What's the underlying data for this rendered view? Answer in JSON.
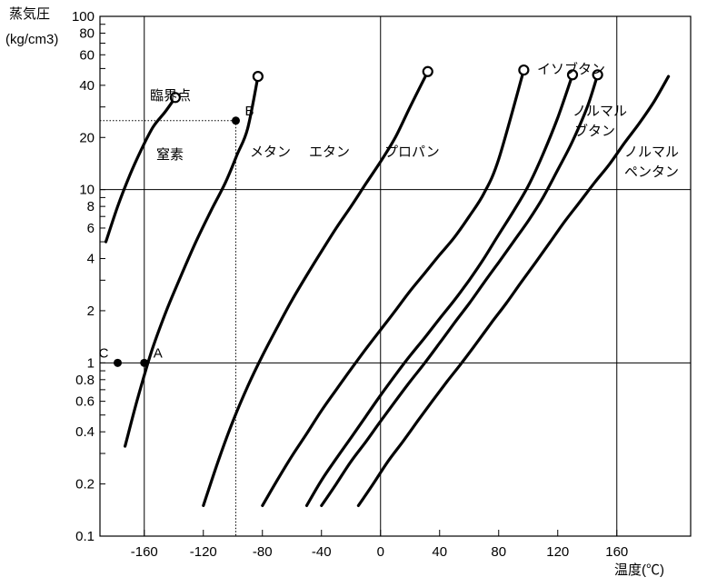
{
  "chart_data": {
    "type": "line",
    "title": "",
    "ylabel": "蒸気圧",
    "ylabel_unit": "(kg/cm3)",
    "xlabel": "温度(℃)",
    "y_scale": "log",
    "ylim": [
      0.1,
      100
    ],
    "xlim": [
      -190,
      210
    ],
    "grid": "sparse",
    "x_ticks": [
      -160,
      -120,
      -80,
      -40,
      0,
      40,
      80,
      120,
      160
    ],
    "x_tick_labels": [
      "-160",
      "-120",
      "-80",
      "-40",
      "0",
      "40",
      "80",
      "120",
      "160"
    ],
    "x_gridlines": [
      -160,
      0,
      160
    ],
    "y_ticks": [
      0.1,
      0.2,
      0.4,
      0.6,
      0.8,
      1,
      2,
      4,
      6,
      8,
      10,
      20,
      40,
      60,
      80,
      100
    ],
    "y_tick_labels": [
      "0.1",
      "0.2",
      "0.4",
      "0.6",
      "0.8",
      "1",
      "2",
      "4",
      "6",
      "8",
      "10",
      "20",
      "40",
      "60",
      "80",
      "100"
    ],
    "y_gridlines": [
      1,
      10
    ],
    "series": [
      {
        "name": "窒素",
        "x": [
          -186,
          -178,
          -170,
          -162,
          -154,
          -146,
          -139
        ],
        "y": [
          5.0,
          8.0,
          12.0,
          17.0,
          23.0,
          28.0,
          34.0
        ],
        "critical_point": [
          -139,
          34
        ]
      },
      {
        "name": "メタン",
        "x": [
          -173,
          -165,
          -155,
          -145,
          -135,
          -125,
          -115,
          -105,
          -97,
          -90,
          -83
        ],
        "y": [
          0.33,
          0.6,
          1.17,
          2.0,
          3.2,
          5.0,
          7.5,
          11.0,
          16.0,
          22.5,
          45.0
        ],
        "critical_point": [
          -83,
          45
        ]
      },
      {
        "name": "エタン",
        "x": [
          -120,
          -110,
          -100,
          -90,
          -80,
          -70,
          -60,
          -50,
          -40,
          -30,
          -20,
          -10,
          0,
          10,
          20,
          32
        ],
        "y": [
          0.15,
          0.27,
          0.46,
          0.73,
          1.1,
          1.6,
          2.3,
          3.2,
          4.4,
          6.0,
          8.0,
          10.8,
          14.5,
          20.0,
          30.0,
          48.0
        ],
        "critical_point": [
          32,
          48
        ]
      },
      {
        "name": "プロパン",
        "x": [
          -80,
          -70,
          -60,
          -50,
          -40,
          -30,
          -20,
          -10,
          0,
          10,
          20,
          30,
          40,
          50,
          60,
          70,
          80,
          97
        ],
        "y": [
          0.15,
          0.21,
          0.29,
          0.39,
          0.53,
          0.7,
          0.92,
          1.2,
          1.55,
          2.0,
          2.6,
          3.3,
          4.2,
          5.3,
          7.0,
          9.5,
          15.0,
          49.0
        ],
        "critical_point": [
          97,
          49
        ]
      },
      {
        "name": "イソブタン",
        "x": [
          -50,
          -40,
          -30,
          -20,
          -10,
          0,
          10,
          20,
          30,
          40,
          50,
          60,
          70,
          80,
          90,
          100,
          110,
          120,
          130
        ],
        "y": [
          0.15,
          0.21,
          0.28,
          0.37,
          0.49,
          0.65,
          0.85,
          1.1,
          1.4,
          1.8,
          2.3,
          3.0,
          4.0,
          5.5,
          7.5,
          10.5,
          16.0,
          26.0,
          46.0
        ],
        "critical_point": [
          130,
          46
        ]
      },
      {
        "name": "ノルマルブタン",
        "x": [
          -40,
          -30,
          -20,
          -10,
          0,
          10,
          20,
          30,
          40,
          50,
          60,
          70,
          80,
          90,
          100,
          110,
          120,
          130,
          140,
          147
        ],
        "y": [
          0.15,
          0.2,
          0.27,
          0.35,
          0.46,
          0.6,
          0.78,
          1.0,
          1.3,
          1.7,
          2.2,
          2.9,
          3.8,
          5.0,
          6.6,
          9.0,
          13.0,
          19.0,
          30.0,
          46.0
        ],
        "critical_point": [
          147,
          46
        ]
      },
      {
        "name": "ノルマルペンタン",
        "x": [
          -15,
          -5,
          5,
          15,
          25,
          35,
          45,
          55,
          65,
          75,
          85,
          95,
          105,
          115,
          125,
          135,
          145,
          155,
          165,
          175,
          185,
          195
        ],
        "y": [
          0.15,
          0.2,
          0.27,
          0.35,
          0.46,
          0.6,
          0.78,
          1.0,
          1.3,
          1.7,
          2.2,
          2.9,
          3.8,
          5.0,
          6.6,
          8.5,
          11.0,
          14.0,
          18.5,
          24.0,
          32.0,
          45.0
        ]
      }
    ],
    "annotations": {
      "critical_point_label": "臨界点",
      "points": [
        {
          "label": "A",
          "x": -160,
          "y": 1
        },
        {
          "label": "B",
          "x": -98,
          "y": 25
        },
        {
          "label": "C",
          "x": -178,
          "y": 1
        }
      ],
      "guide_line": {
        "x": -98,
        "y": 25,
        "style": "dotted"
      }
    }
  }
}
